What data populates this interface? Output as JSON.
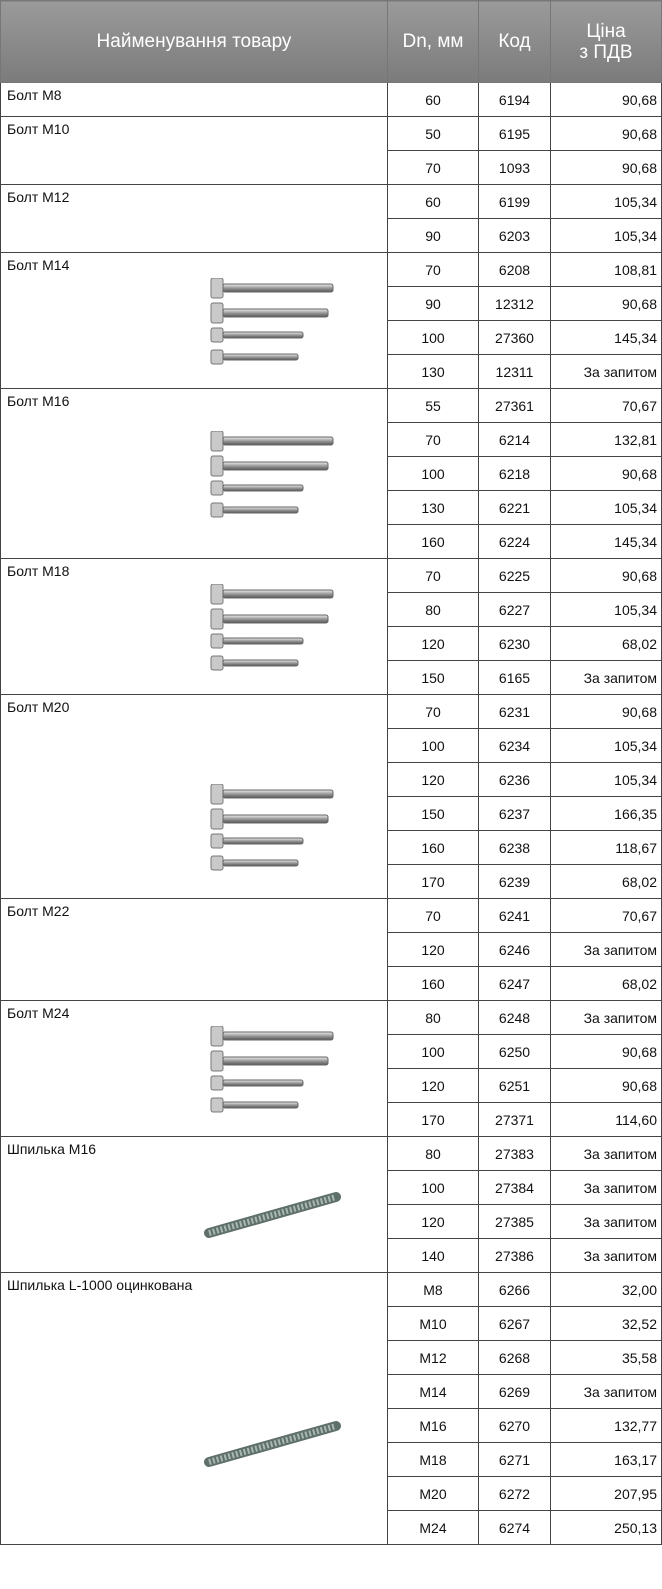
{
  "header": {
    "name": "Найменування товару",
    "dn": "Dn, мм",
    "code": "Код",
    "price": [
      "Ціна",
      "з ПДВ"
    ]
  },
  "groups": [
    {
      "name": "Болт М8",
      "rows": [
        [
          "60",
          "6194",
          "90,68"
        ]
      ]
    },
    {
      "name": "Болт М10",
      "rows": [
        [
          "50",
          "6195",
          "90,68"
        ],
        [
          "70",
          "1093",
          "90,68"
        ]
      ]
    },
    {
      "name": "Болт М12",
      "rows": [
        [
          "60",
          "6199",
          "105,34"
        ],
        [
          "90",
          "6203",
          "105,34"
        ]
      ]
    },
    {
      "name": "Болт М14",
      "rows": [
        [
          "70",
          "6208",
          "108,81"
        ],
        [
          "90",
          "12312",
          "90,68"
        ],
        [
          "100",
          "27360",
          "145,34"
        ],
        [
          "130",
          "12311",
          "За запитом"
        ]
      ]
    },
    {
      "name": "Болт М16",
      "rows": [
        [
          "55",
          "27361",
          "70,67"
        ],
        [
          "70",
          "6214",
          "132,81"
        ],
        [
          "100",
          "6218",
          "90,68"
        ],
        [
          "130",
          "6221",
          "105,34"
        ],
        [
          "160",
          "6224",
          "145,34"
        ]
      ]
    },
    {
      "name": "Болт М18",
      "rows": [
        [
          "70",
          "6225",
          "90,68"
        ],
        [
          "80",
          "6227",
          "105,34"
        ],
        [
          "120",
          "6230",
          "68,02"
        ],
        [
          "150",
          "6165",
          "За запитом"
        ]
      ]
    },
    {
      "name": "Болт М20",
      "rows": [
        [
          "70",
          "6231",
          "90,68"
        ],
        [
          "100",
          "6234",
          "105,34"
        ],
        [
          "120",
          "6236",
          "105,34"
        ],
        [
          "150",
          "6237",
          "166,35"
        ],
        [
          "160",
          "6238",
          "118,67"
        ],
        [
          "170",
          "6239",
          "68,02"
        ]
      ]
    },
    {
      "name": "Болт М22",
      "rows": [
        [
          "70",
          "6241",
          "70,67"
        ],
        [
          "120",
          "6246",
          "За запитом"
        ],
        [
          "160",
          "6247",
          "68,02"
        ]
      ]
    },
    {
      "name": "Болт М24",
      "rows": [
        [
          "80",
          "6248",
          "За запитом"
        ],
        [
          "100",
          "6250",
          "90,68"
        ],
        [
          "120",
          "6251",
          "90,68"
        ],
        [
          "170",
          "27371",
          "114,60"
        ]
      ]
    },
    {
      "name": "Шпилька М16",
      "rows": [
        [
          "80",
          "27383",
          "За запитом"
        ],
        [
          "100",
          "27384",
          "За запитом"
        ],
        [
          "120",
          "27385",
          "За запитом"
        ],
        [
          "140",
          "27386",
          "За запитом"
        ]
      ]
    },
    {
      "name": "Шпилька L-1000 оцинкована",
      "rows": [
        [
          "М8",
          "6266",
          "32,00"
        ],
        [
          "М10",
          "6267",
          "32,52"
        ],
        [
          "М12",
          "6268",
          "35,58"
        ],
        [
          "М14",
          "6269",
          "За запитом"
        ],
        [
          "М16",
          "6270",
          "132,77"
        ],
        [
          "М18",
          "6271",
          "163,17"
        ],
        [
          "М20",
          "6272",
          "207,95"
        ],
        [
          "М24",
          "6274",
          "250,13"
        ]
      ]
    }
  ]
}
